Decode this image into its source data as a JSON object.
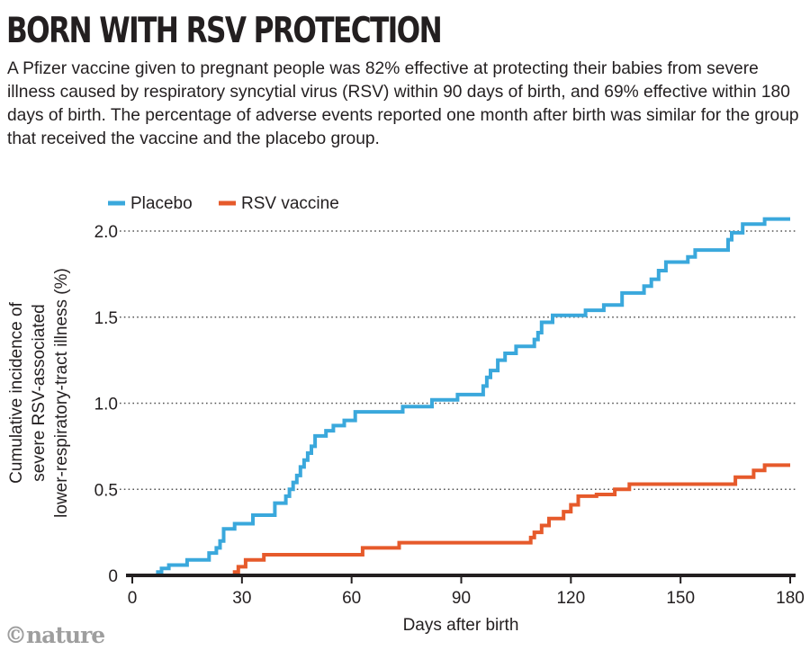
{
  "title": "BORN WITH RSV PROTECTION",
  "subtitle": "A Pfizer vaccine given to pregnant people was 82% effective at protecting their babies from severe illness caused by respiratory syncytial virus (RSV) within 90 days of birth, and 69% effective within 180 days of birth. The percentage of adverse events reported one month after birth was similar for the group that received the vaccine and the placebo group.",
  "credit": "©nature",
  "colors": {
    "placebo": "#3aa8dc",
    "vaccine": "#e65a2b",
    "axis": "#231f20",
    "grid": "#555555"
  },
  "chart_data": {
    "type": "line",
    "step": true,
    "xlabel": "Days after birth",
    "ylabel_lines": [
      "Cumulative incidence of",
      "severe RSV-associated",
      "lower-respiratory-tract illness (%)"
    ],
    "xlim": [
      0,
      180
    ],
    "ylim": [
      0,
      2.0
    ],
    "x_ticks": [
      0,
      30,
      60,
      90,
      120,
      150,
      180
    ],
    "x_tick_labels": [
      "0",
      "30",
      "60",
      "90",
      "120",
      "150",
      "180"
    ],
    "y_ticks": [
      0,
      0.5,
      1.0,
      1.5,
      2.0
    ],
    "y_tick_labels": [
      "0",
      "0.5",
      "1.0",
      "1.5",
      "2.0"
    ],
    "grid": "horizontal-dotted",
    "legend_position": "top-left",
    "series": [
      {
        "name": "Placebo",
        "color": "#3aa8dc",
        "points": [
          [
            0,
            0
          ],
          [
            7,
            0
          ],
          [
            7,
            0.02
          ],
          [
            8,
            0.02
          ],
          [
            8,
            0.04
          ],
          [
            10,
            0.04
          ],
          [
            10,
            0.06
          ],
          [
            15,
            0.06
          ],
          [
            15,
            0.09
          ],
          [
            21,
            0.09
          ],
          [
            21,
            0.13
          ],
          [
            23,
            0.13
          ],
          [
            23,
            0.16
          ],
          [
            24,
            0.16
          ],
          [
            24,
            0.2
          ],
          [
            25,
            0.2
          ],
          [
            25,
            0.27
          ],
          [
            28,
            0.27
          ],
          [
            28,
            0.3
          ],
          [
            33,
            0.3
          ],
          [
            33,
            0.35
          ],
          [
            39,
            0.35
          ],
          [
            39,
            0.42
          ],
          [
            42,
            0.42
          ],
          [
            42,
            0.46
          ],
          [
            43,
            0.46
          ],
          [
            43,
            0.5
          ],
          [
            44,
            0.5
          ],
          [
            44,
            0.54
          ],
          [
            45,
            0.54
          ],
          [
            45,
            0.58
          ],
          [
            46,
            0.58
          ],
          [
            46,
            0.63
          ],
          [
            47,
            0.63
          ],
          [
            47,
            0.67
          ],
          [
            48,
            0.67
          ],
          [
            48,
            0.71
          ],
          [
            49,
            0.71
          ],
          [
            49,
            0.75
          ],
          [
            50,
            0.75
          ],
          [
            50,
            0.81
          ],
          [
            53,
            0.81
          ],
          [
            53,
            0.84
          ],
          [
            55,
            0.84
          ],
          [
            55,
            0.87
          ],
          [
            58,
            0.87
          ],
          [
            58,
            0.9
          ],
          [
            61,
            0.9
          ],
          [
            61,
            0.95
          ],
          [
            74,
            0.95
          ],
          [
            74,
            0.98
          ],
          [
            82,
            0.98
          ],
          [
            82,
            1.02
          ],
          [
            89,
            1.02
          ],
          [
            89,
            1.05
          ],
          [
            96,
            1.05
          ],
          [
            96,
            1.1
          ],
          [
            97,
            1.1
          ],
          [
            97,
            1.15
          ],
          [
            98,
            1.15
          ],
          [
            98,
            1.19
          ],
          [
            100,
            1.19
          ],
          [
            100,
            1.25
          ],
          [
            102,
            1.25
          ],
          [
            102,
            1.29
          ],
          [
            105,
            1.29
          ],
          [
            105,
            1.33
          ],
          [
            110,
            1.33
          ],
          [
            110,
            1.37
          ],
          [
            111,
            1.37
          ],
          [
            111,
            1.41
          ],
          [
            112,
            1.41
          ],
          [
            112,
            1.47
          ],
          [
            115,
            1.47
          ],
          [
            115,
            1.51
          ],
          [
            124,
            1.51
          ],
          [
            124,
            1.54
          ],
          [
            129,
            1.54
          ],
          [
            129,
            1.57
          ],
          [
            134,
            1.57
          ],
          [
            134,
            1.64
          ],
          [
            140,
            1.64
          ],
          [
            140,
            1.68
          ],
          [
            142,
            1.68
          ],
          [
            142,
            1.72
          ],
          [
            144,
            1.72
          ],
          [
            144,
            1.77
          ],
          [
            146,
            1.77
          ],
          [
            146,
            1.82
          ],
          [
            152,
            1.82
          ],
          [
            152,
            1.85
          ],
          [
            154,
            1.85
          ],
          [
            154,
            1.89
          ],
          [
            163,
            1.89
          ],
          [
            163,
            1.95
          ],
          [
            164,
            1.95
          ],
          [
            164,
            1.99
          ],
          [
            167,
            1.99
          ],
          [
            167,
            2.04
          ],
          [
            173,
            2.04
          ],
          [
            173,
            2.07
          ],
          [
            180,
            2.07
          ]
        ]
      },
      {
        "name": "RSV vaccine",
        "color": "#e65a2b",
        "points": [
          [
            27,
            0
          ],
          [
            28,
            0
          ],
          [
            28,
            0.02
          ],
          [
            29,
            0.02
          ],
          [
            29,
            0.05
          ],
          [
            31,
            0.05
          ],
          [
            31,
            0.09
          ],
          [
            36,
            0.09
          ],
          [
            36,
            0.12
          ],
          [
            63,
            0.12
          ],
          [
            63,
            0.16
          ],
          [
            73,
            0.16
          ],
          [
            73,
            0.19
          ],
          [
            109,
            0.19
          ],
          [
            109,
            0.22
          ],
          [
            110,
            0.22
          ],
          [
            110,
            0.25
          ],
          [
            112,
            0.25
          ],
          [
            112,
            0.29
          ],
          [
            114,
            0.29
          ],
          [
            114,
            0.33
          ],
          [
            118,
            0.33
          ],
          [
            118,
            0.37
          ],
          [
            120,
            0.37
          ],
          [
            120,
            0.41
          ],
          [
            122,
            0.41
          ],
          [
            122,
            0.46
          ],
          [
            127,
            0.46
          ],
          [
            127,
            0.47
          ],
          [
            132,
            0.47
          ],
          [
            132,
            0.5
          ],
          [
            136,
            0.5
          ],
          [
            136,
            0.53
          ],
          [
            165,
            0.53
          ],
          [
            165,
            0.57
          ],
          [
            170,
            0.57
          ],
          [
            170,
            0.61
          ],
          [
            173,
            0.61
          ],
          [
            173,
            0.64
          ],
          [
            180,
            0.64
          ]
        ]
      }
    ]
  }
}
